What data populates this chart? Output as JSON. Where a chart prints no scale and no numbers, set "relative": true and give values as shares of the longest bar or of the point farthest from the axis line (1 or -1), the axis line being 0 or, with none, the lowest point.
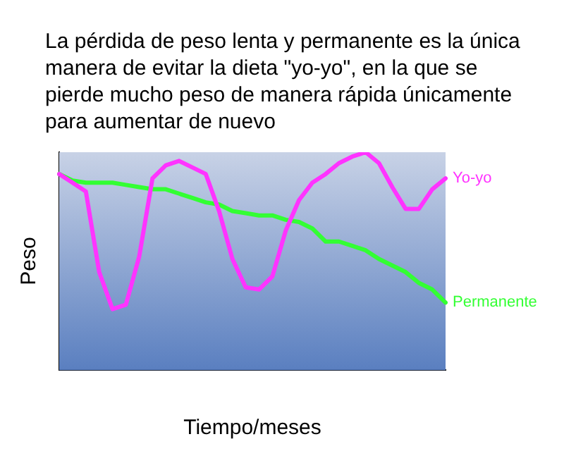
{
  "chart_data": {
    "type": "line",
    "title": "La pérdida de peso lenta y permanente es la única manera de evitar la dieta \"yo-yo\", en la que se pierde mucho peso de manera rápida únicamente para aumentar de nuevo",
    "xlabel": "Tiempo/meses",
    "ylabel": "Peso",
    "relative": true,
    "legend": false,
    "grid": false,
    "marker": "none",
    "categories": [
      null,
      null,
      null,
      null,
      null,
      null,
      null,
      null,
      null,
      null,
      null,
      null,
      null,
      null,
      null,
      null,
      null,
      null,
      null,
      null,
      null,
      null,
      null,
      null,
      null,
      null,
      null,
      null,
      null,
      null
    ],
    "series": [
      {
        "name": "Yo-yo",
        "color": "#ff33ff",
        "values": [
          0.9,
          0.86,
          0.82,
          0.45,
          0.28,
          0.3,
          0.52,
          0.88,
          0.94,
          0.96,
          0.93,
          0.9,
          0.73,
          0.51,
          0.38,
          0.37,
          0.43,
          0.64,
          0.78,
          0.86,
          0.9,
          0.95,
          0.98,
          1,
          0.95,
          0.84,
          0.74,
          0.74,
          0.83,
          0.88
        ]
      },
      {
        "name": "Permanente",
        "color": "#33ff33",
        "values": [
          0.9,
          0.87,
          0.86,
          0.86,
          0.86,
          0.85,
          0.84,
          0.83,
          0.83,
          0.81,
          0.79,
          0.77,
          0.76,
          0.73,
          0.72,
          0.71,
          0.71,
          0.69,
          0.68,
          0.65,
          0.59,
          0.59,
          0.57,
          0.55,
          0.51,
          0.48,
          0.45,
          0.4,
          0.37,
          0.31
        ]
      }
    ]
  }
}
